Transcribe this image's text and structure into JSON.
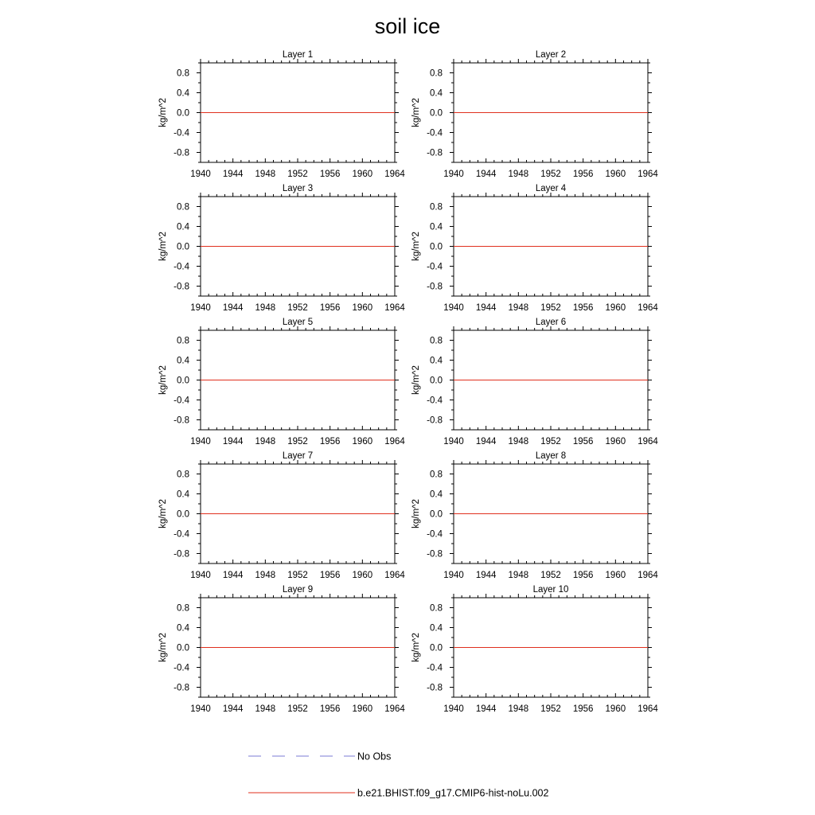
{
  "chart_data": {
    "title": "soil ice",
    "type": "line",
    "x_ticks": [
      "1940",
      "1944",
      "1948",
      "1952",
      "1956",
      "1960",
      "1964"
    ],
    "y_ticks": [
      "0.8",
      "0.4",
      "0.0",
      "-0.4",
      "-0.8"
    ],
    "xlim": [
      1940,
      1964
    ],
    "ylim": [
      -1.0,
      1.0
    ],
    "ylabel": "kg/m^2",
    "panels": [
      {
        "title": "Layer 1",
        "series": [
          {
            "name": "b.e21.BHIST.f09_g17.CMIP6-hist-noLu.002",
            "x": [
              1940,
              1964
            ],
            "y": [
              0.0,
              0.0
            ]
          }
        ]
      },
      {
        "title": "Layer 2",
        "series": [
          {
            "name": "b.e21.BHIST.f09_g17.CMIP6-hist-noLu.002",
            "x": [
              1940,
              1964
            ],
            "y": [
              0.0,
              0.0
            ]
          }
        ]
      },
      {
        "title": "Layer 3",
        "series": [
          {
            "name": "b.e21.BHIST.f09_g17.CMIP6-hist-noLu.002",
            "x": [
              1940,
              1964
            ],
            "y": [
              0.0,
              0.0
            ]
          }
        ]
      },
      {
        "title": "Layer 4",
        "series": [
          {
            "name": "b.e21.BHIST.f09_g17.CMIP6-hist-noLu.002",
            "x": [
              1940,
              1964
            ],
            "y": [
              0.0,
              0.0
            ]
          }
        ]
      },
      {
        "title": "Layer 5",
        "series": [
          {
            "name": "b.e21.BHIST.f09_g17.CMIP6-hist-noLu.002",
            "x": [
              1940,
              1964
            ],
            "y": [
              0.0,
              0.0
            ]
          }
        ]
      },
      {
        "title": "Layer 6",
        "series": [
          {
            "name": "b.e21.BHIST.f09_g17.CMIP6-hist-noLu.002",
            "x": [
              1940,
              1964
            ],
            "y": [
              0.0,
              0.0
            ]
          }
        ]
      },
      {
        "title": "Layer 7",
        "series": [
          {
            "name": "b.e21.BHIST.f09_g17.CMIP6-hist-noLu.002",
            "x": [
              1940,
              1964
            ],
            "y": [
              0.0,
              0.0
            ]
          }
        ]
      },
      {
        "title": "Layer 8",
        "series": [
          {
            "name": "b.e21.BHIST.f09_g17.CMIP6-hist-noLu.002",
            "x": [
              1940,
              1964
            ],
            "y": [
              0.0,
              0.0
            ]
          }
        ]
      },
      {
        "title": "Layer 9",
        "series": [
          {
            "name": "b.e21.BHIST.f09_g17.CMIP6-hist-noLu.002",
            "x": [
              1940,
              1964
            ],
            "y": [
              0.0,
              0.0
            ]
          }
        ]
      },
      {
        "title": "Layer 10",
        "series": [
          {
            "name": "b.e21.BHIST.f09_g17.CMIP6-hist-noLu.002",
            "x": [
              1940,
              1964
            ],
            "y": [
              0.0,
              0.0
            ]
          }
        ]
      }
    ],
    "legend": [
      {
        "label": "No Obs",
        "color": "#7b7bd6",
        "style": "dashed"
      },
      {
        "label": "b.e21.BHIST.f09_g17.CMIP6-hist-noLu.002",
        "color": "#e0301e",
        "style": "solid"
      }
    ],
    "grid": false,
    "legend_placement": "bottom"
  }
}
